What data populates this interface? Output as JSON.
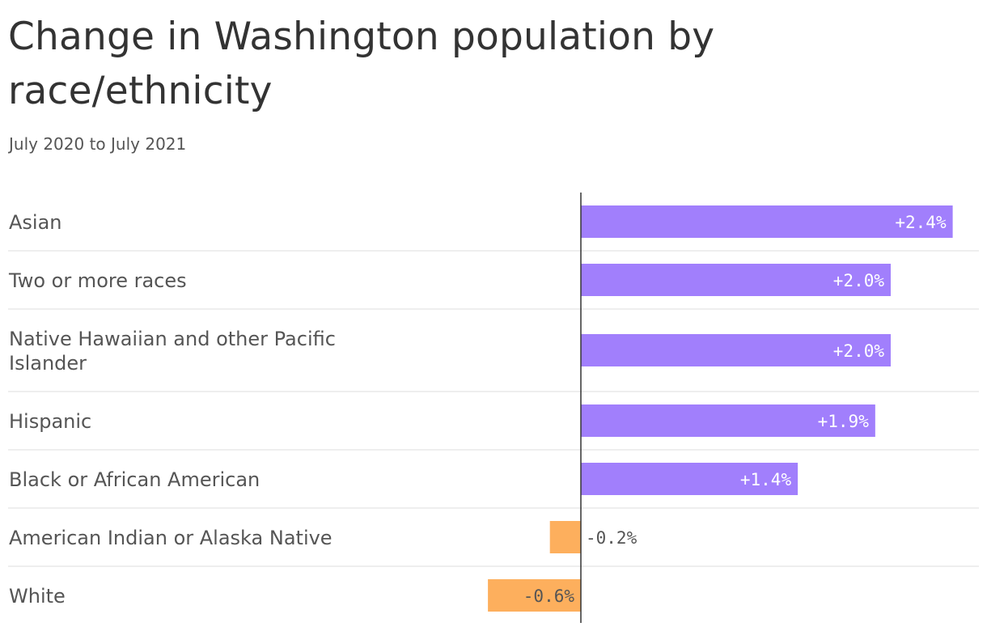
{
  "title": "Change in Washington population by race/ethnicity",
  "subtitle": "July 2020 to July 2021",
  "colors": {
    "positive": "#a17ffc",
    "negative": "#fdaf5d",
    "text": "#555555",
    "title": "#333333",
    "gridline": "#dddddd",
    "zeroline": "#333333"
  },
  "chart_data": {
    "type": "bar",
    "orientation": "horizontal",
    "categories": [
      "Asian",
      "Two or more races",
      "Native Hawaiian and other Pacific Islander",
      "Hispanic",
      "Black or African American",
      "American Indian or Alaska Native",
      "White"
    ],
    "values": [
      2.4,
      2.0,
      2.0,
      1.9,
      1.4,
      -0.2,
      -0.6
    ],
    "labels": [
      "+2.4%",
      "+2.0%",
      "+2.0%",
      "+1.9%",
      "+1.4%",
      "-0.2%",
      "-0.6%"
    ],
    "xlim": [
      -0.6,
      2.4
    ],
    "grid": false
  }
}
